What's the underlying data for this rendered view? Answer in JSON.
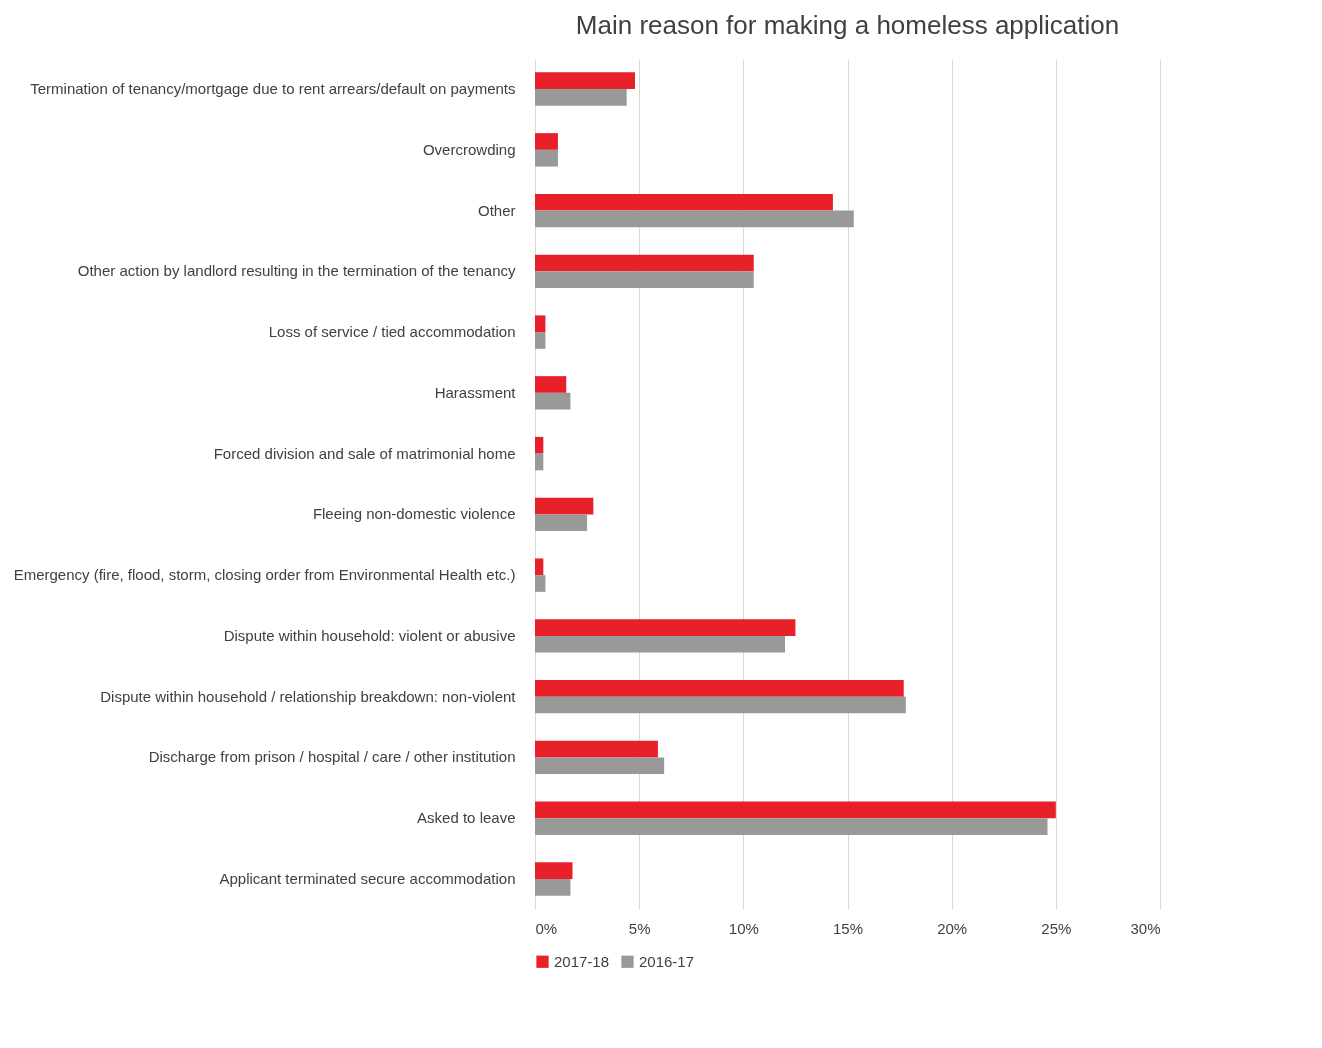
{
  "chart_data": {
    "type": "bar",
    "orientation": "horizontal",
    "title": "Main reason for making a homeless application",
    "categories": [
      "Termination of tenancy/mortgage due to rent arrears/default on payments",
      "Overcrowding",
      "Other",
      "Other action by landlord resulting in the termination of the tenancy",
      "Loss of service / tied accommodation",
      "Harassment",
      "Forced division and sale of matrimonial home",
      "Fleeing non-domestic violence",
      "Emergency (fire, flood, storm, closing order from Environmental Health etc.)",
      "Dispute within household: violent or abusive",
      "Dispute within household / relationship breakdown: non-violent",
      "Discharge from prison / hospital / care / other institution",
      "Asked to leave",
      "Applicant terminated secure accommodation"
    ],
    "series": [
      {
        "name": "2017-18",
        "color": "#e8202a",
        "values": [
          4.8,
          1.1,
          14.3,
          10.5,
          0.5,
          1.5,
          0.4,
          2.8,
          0.4,
          12.5,
          17.7,
          5.9,
          25.0,
          1.8
        ]
      },
      {
        "name": "2016-17",
        "color": "#999999",
        "values": [
          4.4,
          1.1,
          15.3,
          10.5,
          0.5,
          1.7,
          0.4,
          2.5,
          0.5,
          12.0,
          17.8,
          6.2,
          24.6,
          1.7
        ]
      }
    ],
    "xlim": [
      0,
      30
    ],
    "xticks": [
      {
        "value": 0,
        "label": "0%"
      },
      {
        "value": 5,
        "label": "5%"
      },
      {
        "value": 10,
        "label": "10%"
      },
      {
        "value": 15,
        "label": "15%"
      },
      {
        "value": 20,
        "label": "20%"
      },
      {
        "value": 25,
        "label": "25%"
      },
      {
        "value": 30,
        "label": "30%"
      }
    ],
    "grid": "x",
    "legend": "bottom"
  }
}
